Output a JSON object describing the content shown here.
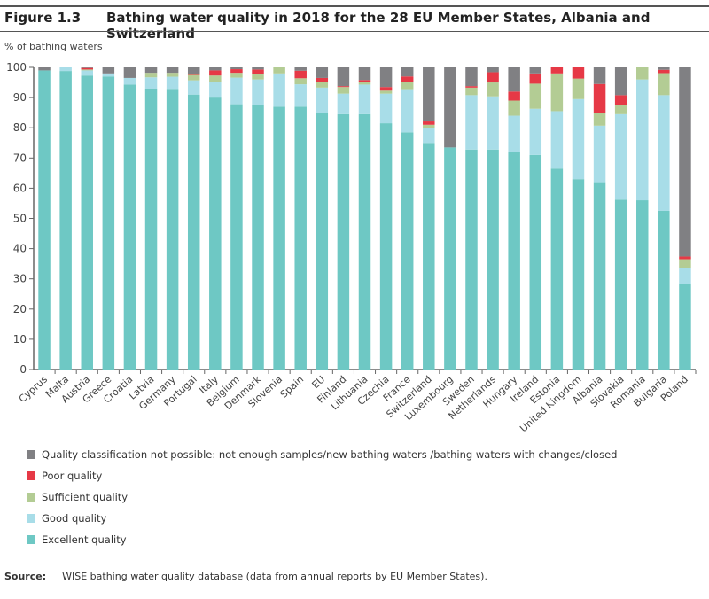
{
  "figure": {
    "number": "Figure 1.3",
    "title": "Bathing water quality in 2018 for the 28 EU Member States, Albania and Switzerland"
  },
  "source": {
    "label": "Source:",
    "text": "WISE bathing water quality database (data from annual reports by EU Member States)."
  },
  "chart_data": {
    "type": "bar",
    "stacked": true,
    "title": "Bathing water quality in 2018 for the 28 EU Member States, Albania and Switzerland",
    "xlabel": "",
    "ylabel": "% of bathing waters",
    "ylim": [
      0,
      100
    ],
    "yticks": [
      0,
      10,
      20,
      30,
      40,
      50,
      60,
      70,
      80,
      90,
      100
    ],
    "grid": false,
    "legend_position": "bottom",
    "categories": [
      "Cyprus",
      "Malta",
      "Austria",
      "Greece",
      "Croatia",
      "Latvia",
      "Germany",
      "Portugal",
      "Italy",
      "Belgium",
      "Denmark",
      "Slovenia",
      "Spain",
      "EU",
      "Finland",
      "Lithuania",
      "Czechia",
      "France",
      "Switzerland",
      "Luxembourg",
      "Sweden",
      "Netherlands",
      "Hungary",
      "Ireland",
      "Estonia",
      "United Kingdom",
      "Albania",
      "Slovakia",
      "Romania",
      "Bulgaria",
      "Poland"
    ],
    "series": [
      {
        "name": "Excellent quality",
        "color": "#6ec8c4",
        "values": [
          99.0,
          98.8,
          97.3,
          97.0,
          94.3,
          92.8,
          92.6,
          91.0,
          90.0,
          87.8,
          87.5,
          87.0,
          87.0,
          85.0,
          84.5,
          84.5,
          81.5,
          78.5,
          75.0,
          73.5,
          72.8,
          72.8,
          72.0,
          71.0,
          66.5,
          63.0,
          62.0,
          56.2,
          56.0,
          52.5,
          28.2
        ]
      },
      {
        "name": "Good quality",
        "color": "#a8dde8",
        "values": [
          0.0,
          1.2,
          1.7,
          1.0,
          2.2,
          3.9,
          4.3,
          4.7,
          5.3,
          8.8,
          8.5,
          11.0,
          7.4,
          8.3,
          6.8,
          9.8,
          9.8,
          14.0,
          5.0,
          0.0,
          18.0,
          17.6,
          12.0,
          15.3,
          19.0,
          26.5,
          18.7,
          28.3,
          40.0,
          38.3,
          5.3
        ]
      },
      {
        "name": "Sufficient quality",
        "color": "#b3cc94",
        "values": [
          0.0,
          0.0,
          0.3,
          0.0,
          0.0,
          1.5,
          1.3,
          1.8,
          2.0,
          1.6,
          1.8,
          2.0,
          2.0,
          2.0,
          2.2,
          1.0,
          1.0,
          2.7,
          1.0,
          0.0,
          2.5,
          4.6,
          5.0,
          8.3,
          12.5,
          6.8,
          4.3,
          3.0,
          4.0,
          7.3,
          3.0
        ]
      },
      {
        "name": "Poor quality",
        "color": "#e63946",
        "values": [
          0.0,
          0.0,
          0.5,
          0.0,
          0.0,
          0.0,
          0.0,
          0.4,
          1.7,
          1.2,
          1.5,
          0.0,
          2.5,
          1.2,
          0.3,
          0.5,
          1.2,
          1.8,
          1.1,
          0.0,
          0.5,
          3.4,
          3.0,
          3.4,
          2.0,
          3.7,
          9.5,
          3.3,
          0.0,
          1.1,
          0.9
        ]
      },
      {
        "name": "Quality classification not possible: not enough samples/new bathing waters /bathing waters with changes/closed",
        "color": "#808083",
        "values": [
          1.0,
          0.0,
          0.2,
          2.0,
          3.5,
          1.8,
          1.8,
          2.1,
          1.0,
          0.6,
          0.7,
          0.0,
          1.1,
          3.5,
          6.2,
          4.2,
          6.5,
          3.0,
          17.9,
          26.5,
          6.2,
          1.6,
          8.0,
          2.0,
          0.0,
          0.0,
          5.5,
          9.2,
          0.0,
          0.8,
          62.6
        ]
      }
    ],
    "legend_order": [
      "Quality classification not possible: not enough samples/new bathing waters /bathing waters with changes/closed",
      "Poor quality",
      "Sufficient quality",
      "Good quality",
      "Excellent quality"
    ]
  }
}
